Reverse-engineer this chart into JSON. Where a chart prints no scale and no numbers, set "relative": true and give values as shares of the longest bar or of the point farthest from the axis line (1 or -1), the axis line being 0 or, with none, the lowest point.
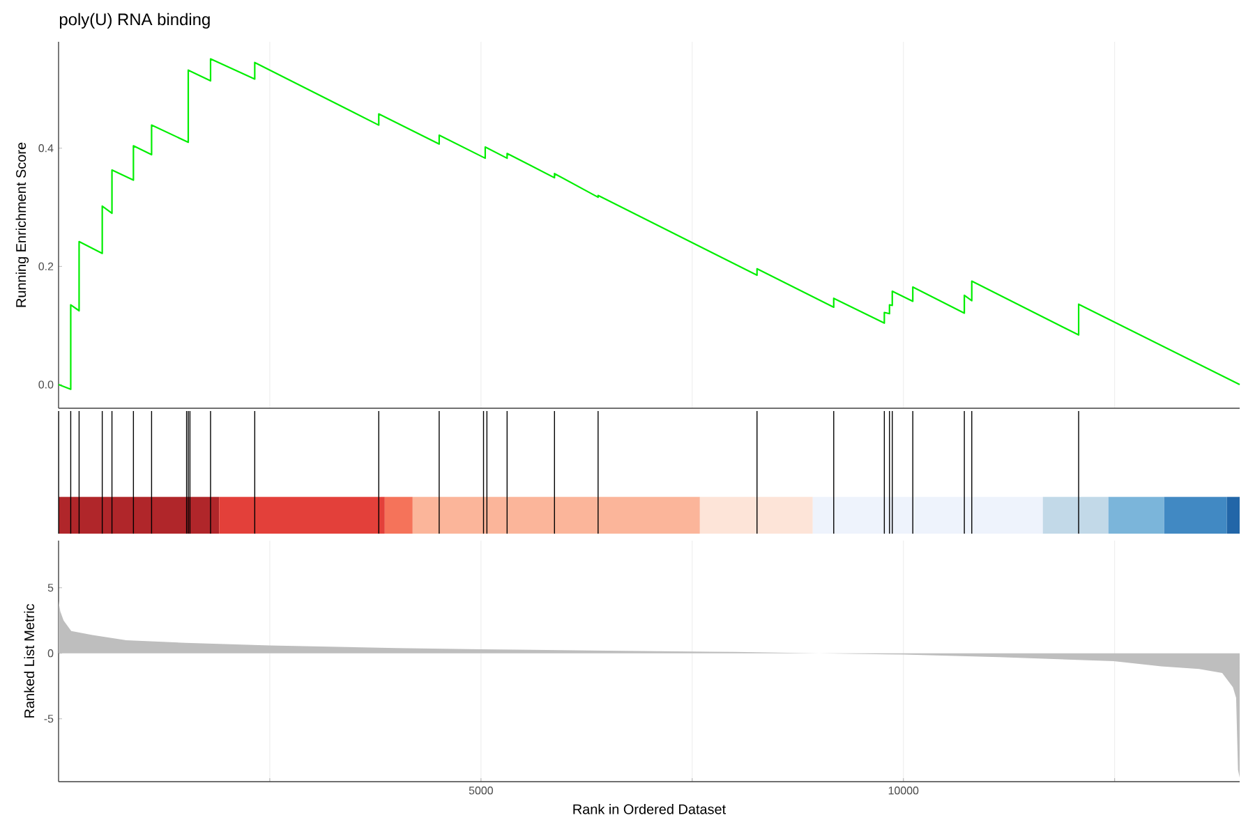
{
  "chart_data": [
    {
      "type": "line",
      "title": "poly(U) RNA binding",
      "ylabel": "Running Enrichment Score",
      "color": "#00ee00",
      "x": [
        0,
        144,
        144,
        243,
        243,
        517,
        517,
        632,
        632,
        886,
        886,
        1101,
        1101,
        1535,
        1535,
        1799,
        1799,
        2322,
        2322,
        3790,
        3790,
        4505,
        4505,
        5050,
        5050,
        5309,
        5309,
        5870,
        5870,
        6386,
        6386,
        8267,
        8267,
        9175,
        9175,
        9774,
        9774,
        9835,
        9835,
        9868,
        9868,
        10111,
        10111,
        10721,
        10721,
        10809,
        10809,
        12074,
        12074,
        13980
      ],
      "values": [
        0,
        -0.008,
        0.135,
        0.125,
        0.242,
        0.222,
        0.302,
        0.29,
        0.363,
        0.346,
        0.404,
        0.389,
        0.439,
        0.41,
        0.532,
        0.514,
        0.551,
        0.517,
        0.545,
        0.439,
        0.458,
        0.407,
        0.422,
        0.383,
        0.402,
        0.383,
        0.391,
        0.35,
        0.357,
        0.317,
        0.32,
        0.185,
        0.196,
        0.131,
        0.146,
        0.104,
        0.122,
        0.12,
        0.135,
        0.134,
        0.158,
        0.141,
        0.165,
        0.121,
        0.151,
        0.142,
        0.175,
        0.084,
        0.136,
        0
      ],
      "xlim": [
        0,
        13980
      ],
      "ylim": [
        -0.04,
        0.58
      ],
      "xticks": [
        {
          "value": 2500,
          "label": null
        },
        {
          "value": 5000,
          "label": null
        },
        {
          "value": 7500,
          "label": null
        },
        {
          "value": 10000,
          "label": null
        },
        {
          "value": 12500,
          "label": null
        }
      ],
      "yticks": [
        {
          "value": 0,
          "label": "0.0"
        },
        {
          "value": 0.2,
          "label": "0.2"
        },
        {
          "value": 0.4,
          "label": "0.4"
        }
      ],
      "grid": "x",
      "tick_labels": "y"
    },
    {
      "type": "bar",
      "relative": true,
      "color": "#000000",
      "x": [
        1,
        144,
        243,
        517,
        632,
        886,
        1101,
        1515,
        1535,
        1555,
        1799,
        2322,
        3790,
        4505,
        5030,
        5070,
        5309,
        5870,
        6386,
        8267,
        9175,
        9774,
        9835,
        9868,
        10111,
        10721,
        10809,
        12074
      ],
      "values": [
        1,
        1,
        1,
        1,
        1,
        1,
        1,
        1,
        1,
        1,
        1,
        1,
        1,
        1,
        1,
        1,
        1,
        1,
        1,
        1,
        1,
        1,
        1,
        1,
        1,
        1,
        1,
        1
      ],
      "xlim": [
        0,
        13980
      ],
      "tick_labels": false,
      "bands": [
        {
          "axis": "x",
          "from": 0,
          "to": 1900,
          "color": "#b0262a"
        },
        {
          "axis": "x",
          "from": 1900,
          "to": 3861,
          "color": "#e3403a"
        },
        {
          "axis": "x",
          "from": 3861,
          "to": 4191,
          "color": "#f5735a"
        },
        {
          "axis": "x",
          "from": 4191,
          "to": 7591,
          "color": "#fbb59a"
        },
        {
          "axis": "x",
          "from": 7591,
          "to": 8927,
          "color": "#fde4d8"
        },
        {
          "axis": "x",
          "from": 8927,
          "to": 11650,
          "color": "#eef3fc"
        },
        {
          "axis": "x",
          "from": 11650,
          "to": 12426,
          "color": "#c2d9e8"
        },
        {
          "axis": "x",
          "from": 12426,
          "to": 13086,
          "color": "#7bb5da"
        },
        {
          "axis": "x",
          "from": 13086,
          "to": 13828,
          "color": "#4189c3"
        },
        {
          "axis": "x",
          "from": 13828,
          "to": 13980,
          "color": "#2266a8"
        }
      ]
    },
    {
      "type": "area",
      "xlabel": "Rank in Ordered Dataset",
      "ylabel": "Ranked List Metric",
      "color": "#bebebe",
      "x": [
        0,
        20,
        60,
        150,
        400,
        800,
        1500,
        2500,
        4000,
        5000,
        6500,
        8000,
        9000,
        10000,
        11133,
        12487,
        13053,
        13500,
        13773,
        13900,
        13938,
        13960,
        13980
      ],
      "values": [
        4.0,
        3.2,
        2.5,
        1.7,
        1.4,
        1.0,
        0.8,
        0.6,
        0.4,
        0.3,
        0.2,
        0.1,
        0.0,
        -0.1,
        -0.3,
        -0.6,
        -1.0,
        -1.2,
        -1.5,
        -2.6,
        -3.4,
        -8.9,
        -9.5
      ],
      "xlim": [
        0,
        13980
      ],
      "ylim": [
        -9.8,
        8.6
      ],
      "xticks": [
        {
          "value": 2500,
          "label": null
        },
        5000,
        {
          "value": 7500,
          "label": null
        },
        10000,
        {
          "value": 12500,
          "label": null
        }
      ],
      "yticks": [
        -5,
        0,
        5
      ],
      "grid": "x"
    }
  ]
}
